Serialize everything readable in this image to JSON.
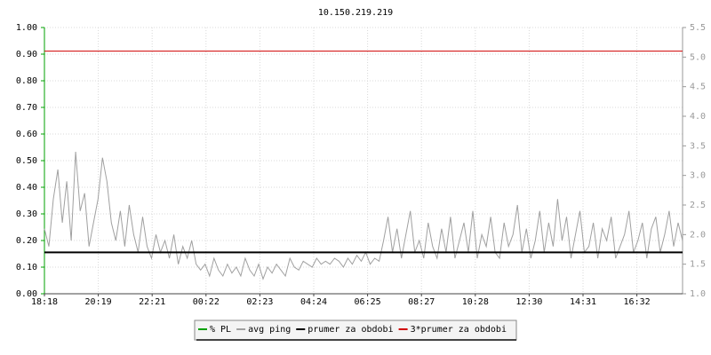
{
  "chart_data": {
    "type": "line",
    "title": "10.150.219.219",
    "xticks": [
      "18:18",
      "20:19",
      "22:21",
      "00:22",
      "02:23",
      "04:24",
      "06:25",
      "08:27",
      "10:28",
      "12:30",
      "14:31",
      "16:32"
    ],
    "ylim": [
      0,
      1
    ],
    "yticks": [
      {
        "value": 0,
        "label": "0.00"
      },
      {
        "value": 0.1,
        "label": "0.10"
      },
      {
        "value": 0.2,
        "label": "0.20"
      },
      {
        "value": 0.3,
        "label": "0.30"
      },
      {
        "value": 0.4,
        "label": "0.40"
      },
      {
        "value": 0.5,
        "label": "0.50"
      },
      {
        "value": 0.6,
        "label": "0.60"
      },
      {
        "value": 0.7,
        "label": "0.70"
      },
      {
        "value": 0.8,
        "label": "0.80"
      },
      {
        "value": 0.9,
        "label": "0.90"
      },
      {
        "value": 1,
        "label": "1.00"
      }
    ],
    "y2lim": [
      1,
      5.5
    ],
    "y2ticks": [
      {
        "value": 1,
        "label": "1.0"
      },
      1.5,
      {
        "value": 2,
        "label": "2.0"
      },
      2.5,
      {
        "value": 3,
        "label": "3.0"
      },
      3.5,
      {
        "value": 4,
        "label": "4.0"
      },
      4.5,
      {
        "value": 5,
        "label": "5.0"
      },
      5.5
    ],
    "grid": true,
    "series": [
      {
        "name": "% PL",
        "color": "#00a000"
      },
      {
        "name": "avg ping",
        "color": "#a0a0a0",
        "axis": "y2",
        "values": [
          2.1,
          1.8,
          2.6,
          3.1,
          2.2,
          2.9,
          1.9,
          3.4,
          2.4,
          2.7,
          1.8,
          2.2,
          2.6,
          3.3,
          2.9,
          2.2,
          1.9,
          2.4,
          1.8,
          2.5,
          2.0,
          1.7,
          2.3,
          1.8,
          1.6,
          2.0,
          1.7,
          1.9,
          1.6,
          2.0,
          1.5,
          1.8,
          1.6,
          1.9,
          1.5,
          1.4,
          1.5,
          1.3,
          1.6,
          1.4,
          1.3,
          1.5,
          1.35,
          1.45,
          1.3,
          1.6,
          1.4,
          1.3,
          1.5,
          1.25,
          1.45,
          1.35,
          1.5,
          1.4,
          1.3,
          1.6,
          1.45,
          1.4,
          1.55,
          1.5,
          1.45,
          1.6,
          1.5,
          1.55,
          1.5,
          1.6,
          1.55,
          1.45,
          1.6,
          1.5,
          1.65,
          1.55,
          1.7,
          1.5,
          1.6,
          1.55,
          1.9,
          2.3,
          1.7,
          2.1,
          1.6,
          2.0,
          2.4,
          1.7,
          1.9,
          1.6,
          2.2,
          1.8,
          1.6,
          2.1,
          1.7,
          2.3,
          1.6,
          1.9,
          2.2,
          1.7,
          2.4,
          1.6,
          2.0,
          1.8,
          2.3,
          1.7,
          1.6,
          2.2,
          1.8,
          2.0,
          2.5,
          1.7,
          2.1,
          1.6,
          1.9,
          2.4,
          1.7,
          2.2,
          1.8,
          2.6,
          1.9,
          2.3,
          1.6,
          2.0,
          2.4,
          1.7,
          1.8,
          2.2,
          1.6,
          2.1,
          1.9,
          2.3,
          1.6,
          1.8,
          2.0,
          2.4,
          1.7,
          1.9,
          2.2,
          1.6,
          2.1,
          2.3,
          1.7,
          2.0,
          2.4,
          1.8,
          2.2,
          1.9
        ]
      },
      {
        "name": "prumer za obdobi",
        "color": "#000000",
        "axis": "y2",
        "value": 1.7
      },
      {
        "name": "3*prumer za obdobi",
        "color": "#d00000",
        "axis": "y2",
        "value": 5.1
      }
    ]
  }
}
